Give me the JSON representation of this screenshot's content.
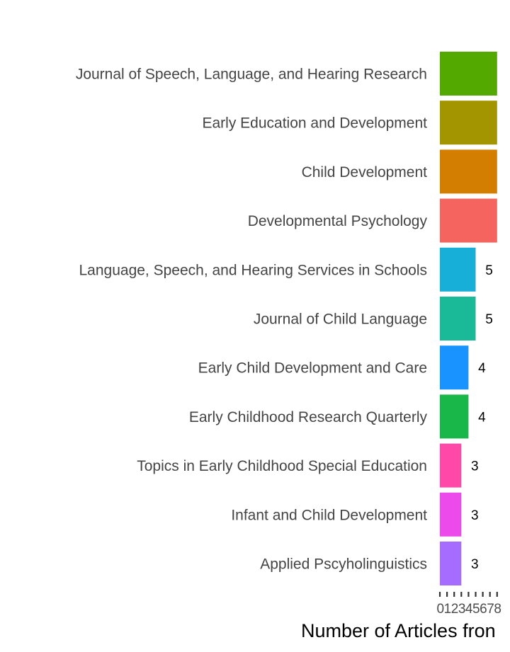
{
  "chart_data": {
    "type": "bar",
    "orientation": "horizontal",
    "categories": [
      "Journal of Speech, Language, and Hearing Research",
      "Early Education and Development",
      "Child Development",
      "Developmental Psychology",
      "Language, Speech, and Hearing Services in Schools",
      "Journal of Child Language",
      "Early Child Development and Care",
      "Early Childhood Research Quarterly",
      "Topics in Early Childhood Special Education",
      "Infant and Child Development",
      "Applied Pscyholinguistics"
    ],
    "values": [
      8,
      8,
      8,
      8,
      5,
      5,
      4,
      4,
      3,
      3,
      3
    ],
    "value_labels": [
      "",
      "",
      "",
      "",
      "5",
      "5",
      "4",
      "4",
      "3",
      "3",
      "3"
    ],
    "colors": [
      "#53a900",
      "#a39500",
      "#d47e00",
      "#f5645e",
      "#17aed8",
      "#1ab997",
      "#1893ff",
      "#19b74a",
      "#ff48a8",
      "#ec4aea",
      "#a66bff"
    ],
    "xlabel": "Number of Articles fron",
    "ylabel": "",
    "xlim": [
      0,
      8
    ],
    "ticks": [
      0,
      1,
      2,
      3,
      4,
      5,
      6,
      7,
      8
    ],
    "grid": false,
    "legend": "none"
  }
}
